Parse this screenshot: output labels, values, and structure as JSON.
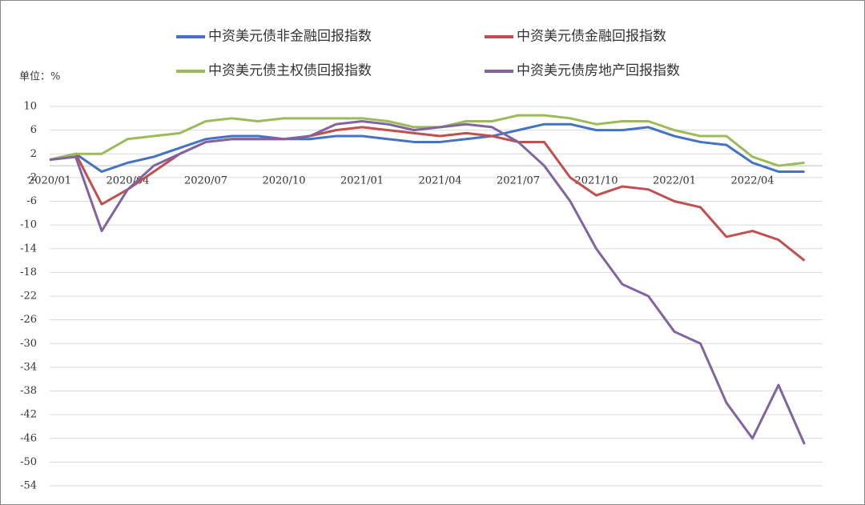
{
  "chart_data": {
    "type": "line",
    "unit_label": "单位：%",
    "categories": [
      "2020/01",
      null,
      null,
      "2020/04",
      null,
      null,
      "2020/07",
      null,
      null,
      "2020/10",
      null,
      null,
      "2021/01",
      null,
      null,
      "2021/04",
      null,
      null,
      "2021/07",
      null,
      null,
      "2021/10",
      null,
      null,
      "2022/01",
      null,
      null,
      "2022/04",
      null,
      null
    ],
    "series": [
      {
        "name": "中资美元债非金融回报指数",
        "color": "#4472c4",
        "values": [
          1,
          2,
          -1,
          0.5,
          1.5,
          3,
          4.5,
          5,
          5,
          4.5,
          4.5,
          5,
          5,
          4.5,
          4,
          4,
          4.5,
          5,
          6,
          7,
          7,
          6,
          6,
          6.5,
          5,
          4,
          3.5,
          0.5,
          -1,
          -1
        ]
      },
      {
        "name": "中资美元债金融回报指数",
        "color": "#c0504d",
        "values": [
          1,
          2,
          -6.5,
          -4,
          -1,
          2,
          4,
          4.5,
          4.5,
          4.5,
          5,
          6,
          6.5,
          6,
          5.5,
          5,
          5.5,
          5,
          4,
          4,
          -2,
          -5,
          -3.5,
          -4,
          -6,
          -7,
          -12,
          -11,
          -12.5,
          -16
        ]
      },
      {
        "name": "中资美元债主权债回报指数",
        "color": "#9bbb59",
        "values": [
          1,
          2,
          2,
          4.5,
          5,
          5.5,
          7.5,
          8,
          7.5,
          8,
          8,
          8,
          8,
          7.5,
          6.5,
          6.5,
          7.5,
          7.5,
          8.5,
          8.5,
          8,
          7,
          7.5,
          7.5,
          6,
          5,
          5,
          1.5,
          0,
          0.5
        ]
      },
      {
        "name": "中资美元债房地产回报指数",
        "color": "#8064a2",
        "values": [
          1,
          1.5,
          -11,
          -4,
          0,
          2,
          4,
          4.5,
          4.5,
          4.5,
          5,
          7,
          7.5,
          7,
          6,
          6.5,
          7,
          6.5,
          4,
          0,
          -6,
          -14,
          -20,
          -22,
          -28,
          -30,
          -40,
          -46,
          -37,
          -47
        ]
      }
    ],
    "ylim": [
      -54,
      10
    ],
    "yticks": [
      10,
      6,
      2,
      -2,
      -6,
      -10,
      -14,
      -18,
      -22,
      -26,
      -30,
      -34,
      -38,
      -42,
      -46,
      -50,
      -54
    ],
    "grid": true
  }
}
